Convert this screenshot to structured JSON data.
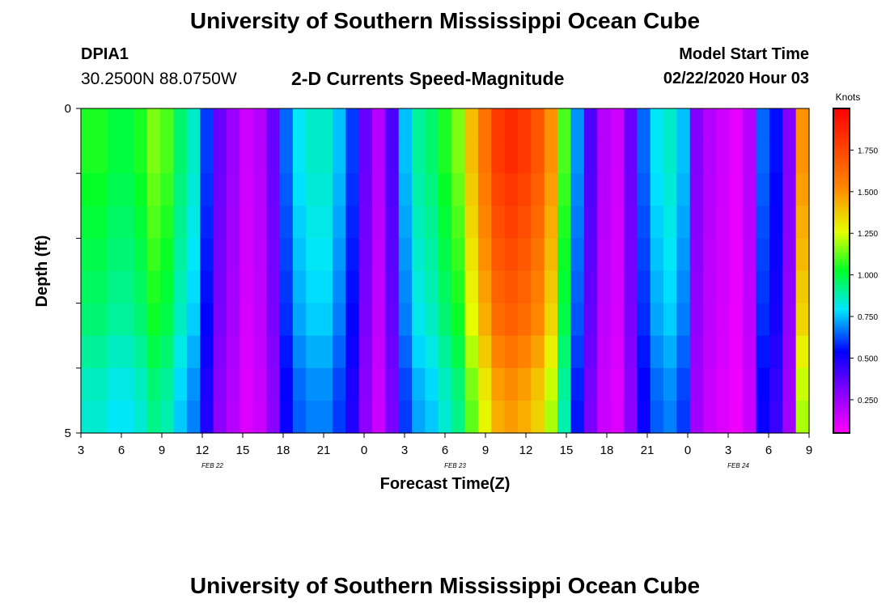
{
  "header": {
    "title": "University of Southern Mississippi Ocean Cube",
    "station": "DPIA1",
    "coords": "30.2500N 88.0750W",
    "subtitle": "2-D Currents Speed-Magnitude",
    "model_start_label": "Model Start Time",
    "model_start_value": "02/22/2020 Hour 03"
  },
  "footer": {
    "title": "University of Southern Mississippi Ocean Cube"
  },
  "chart_data": {
    "type": "heatmap",
    "xlabel": "Forecast Time(Z)",
    "ylabel": "Depth (ft)",
    "y_ticks": [
      "0",
      "5"
    ],
    "ylim": [
      0,
      5
    ],
    "x_ticks": [
      "3",
      "6",
      "9",
      "12",
      "15",
      "18",
      "21",
      "0",
      "3",
      "6",
      "9",
      "12",
      "15",
      "18",
      "21",
      "0",
      "3",
      "6",
      "9"
    ],
    "date_labels": [
      {
        "text": "FEB 22",
        "after_tick": 3
      },
      {
        "text": "FEB 23",
        "after_tick": 9
      },
      {
        "text": "FEB 24",
        "after_tick": 16
      }
    ],
    "colorbar": {
      "label": "Knots",
      "ticks": [
        "0.250",
        "0.500",
        "0.750",
        "1.000",
        "1.250",
        "1.500",
        "1.750"
      ],
      "tick_values": [
        0.25,
        0.5,
        0.75,
        1.0,
        1.25,
        1.5,
        1.75
      ],
      "range": [
        0.05,
        2.0
      ]
    },
    "hours": 55,
    "surface_speed": [
      1.05,
      1.05,
      1.0,
      1.0,
      1.05,
      1.15,
      1.1,
      0.95,
      0.85,
      0.6,
      0.35,
      0.25,
      0.15,
      0.2,
      0.35,
      0.65,
      0.8,
      0.85,
      0.85,
      0.75,
      0.6,
      0.35,
      0.2,
      0.4,
      0.75,
      0.9,
      0.95,
      1.05,
      1.15,
      1.4,
      1.6,
      1.8,
      1.85,
      1.8,
      1.7,
      1.5,
      1.1,
      0.7,
      0.4,
      0.2,
      0.15,
      0.35,
      0.65,
      0.8,
      0.85,
      0.75,
      0.3,
      0.2,
      0.15,
      0.1,
      0.2,
      0.65,
      0.55,
      0.3,
      1.5
    ],
    "row_factors": [
      1.0,
      1.0,
      0.98,
      0.96,
      0.94,
      0.92,
      0.9,
      0.86,
      0.82,
      0.8
    ]
  }
}
